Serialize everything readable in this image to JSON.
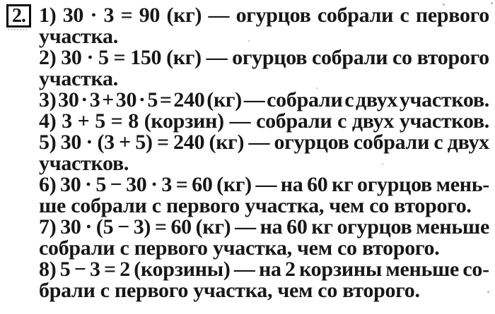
{
  "colors": {
    "background": "#ffffff",
    "text": "#171717",
    "badge_border": "#0a0a0a"
  },
  "document": {
    "task_number": "2.",
    "items": [
      {
        "lines": [
          "1) 30 · 3 = 90 (кг) — огурцов собрали с первого",
          "участка."
        ]
      },
      {
        "lines": [
          "2) 30 · 5 = 150 (кг) — огурцов собрали со второго",
          "участка."
        ]
      },
      {
        "lines": [
          "3) 30 · 3 + 30 · 5 = 240 (кг) — собрали с двух участков."
        ]
      },
      {
        "lines": [
          "4) 3 + 5 = 8 (корзин) — собрали с двух участков."
        ]
      },
      {
        "lines": [
          "5) 30 · (3 + 5) = 240 (кг) — огурцов собрали с двух",
          "участков."
        ]
      },
      {
        "lines": [
          "6) 30 · 5 − 30 · 3 = 60 (кг) — на 60 кг огурцов мень-",
          "ше собрали с первого участка, чем со второго."
        ]
      },
      {
        "lines": [
          "7) 30 · (5 − 3) = 60 (кг) — на 60 кг огурцов меньше",
          "собрали с первого участка, чем со второго."
        ]
      },
      {
        "lines": [
          "8) 5 − 3 = 2 (корзины) — на 2 корзины меньше со-",
          "брали с первого участка, чем со второго."
        ]
      }
    ]
  }
}
